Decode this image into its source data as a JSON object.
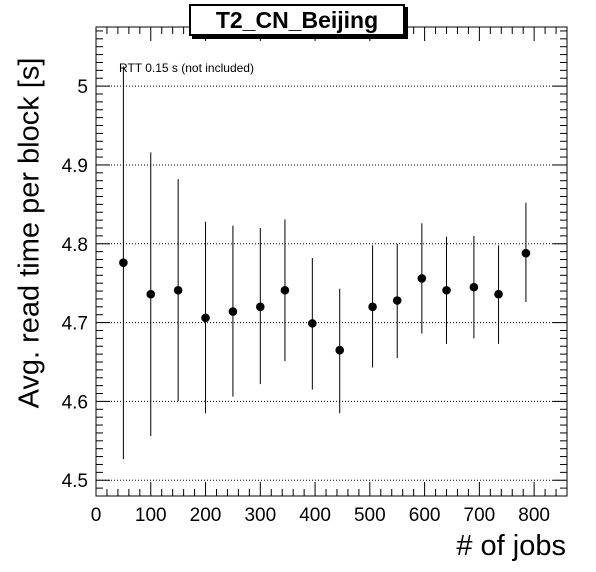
{
  "chart_data": {
    "type": "scatter",
    "title": "T2_CN_Beijing",
    "xlabel": "# of jobs",
    "ylabel": "Avg. read time per block [s]",
    "annotation": "RTT 0.15 s (not included)",
    "xlim": [
      0,
      860
    ],
    "ylim": [
      4.48,
      5.075
    ],
    "xticks": [
      0,
      100,
      200,
      300,
      400,
      500,
      600,
      700,
      800
    ],
    "yticks": [
      4.5,
      4.6,
      4.7,
      4.8,
      4.9,
      5.0
    ],
    "yticklabels": [
      "4.5",
      "4.6",
      "4.7",
      "4.8",
      "4.9",
      "5"
    ],
    "grid": "horizontal-dotted",
    "points": [
      {
        "x": 50,
        "y": 4.776,
        "ylow": 4.527,
        "yhigh": 5.025
      },
      {
        "x": 100,
        "y": 4.736,
        "ylow": 4.556,
        "yhigh": 4.916
      },
      {
        "x": 150,
        "y": 4.741,
        "ylow": 4.6,
        "yhigh": 4.882
      },
      {
        "x": 200,
        "y": 4.706,
        "ylow": 4.585,
        "yhigh": 4.828
      },
      {
        "x": 250,
        "y": 4.714,
        "ylow": 4.606,
        "yhigh": 4.823
      },
      {
        "x": 300,
        "y": 4.72,
        "ylow": 4.622,
        "yhigh": 4.82
      },
      {
        "x": 345,
        "y": 4.741,
        "ylow": 4.651,
        "yhigh": 4.831
      },
      {
        "x": 395,
        "y": 4.699,
        "ylow": 4.615,
        "yhigh": 4.782
      },
      {
        "x": 445,
        "y": 4.665,
        "ylow": 4.585,
        "yhigh": 4.743
      },
      {
        "x": 505,
        "y": 4.72,
        "ylow": 4.643,
        "yhigh": 4.798
      },
      {
        "x": 550,
        "y": 4.728,
        "ylow": 4.655,
        "yhigh": 4.8
      },
      {
        "x": 595,
        "y": 4.756,
        "ylow": 4.686,
        "yhigh": 4.826
      },
      {
        "x": 640,
        "y": 4.741,
        "ylow": 4.673,
        "yhigh": 4.809
      },
      {
        "x": 690,
        "y": 4.745,
        "ylow": 4.68,
        "yhigh": 4.81
      },
      {
        "x": 735,
        "y": 4.736,
        "ylow": 4.673,
        "yhigh": 4.798
      },
      {
        "x": 785,
        "y": 4.788,
        "ylow": 4.726,
        "yhigh": 4.852
      }
    ]
  }
}
